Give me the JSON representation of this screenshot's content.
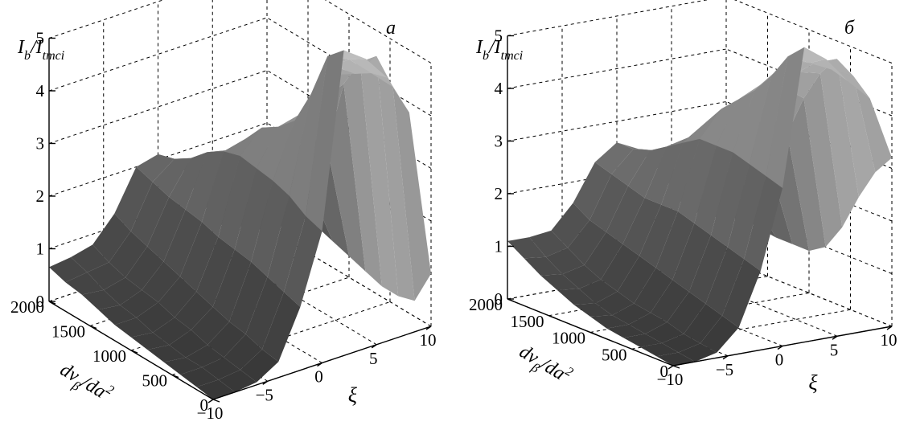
{
  "chart_data": [
    {
      "type": "surface",
      "panel_label": "а",
      "zlabel_main": "I",
      "zlabel_sub1": "b",
      "zlabel_slash": "/I",
      "zlabel_sub2": "tmci",
      "xlabel_main": "dν",
      "xlabel_sub": "β",
      "xlabel_tail": "/da",
      "xlabel_sup": "2",
      "ylabel": "ξ",
      "x_ticks": [
        "0",
        "500",
        "1000",
        "1500",
        "2000"
      ],
      "y_ticks": [
        "−10",
        "−5",
        "0",
        "5",
        "10"
      ],
      "z_ticks": [
        "0",
        "1",
        "2",
        "3",
        "4",
        "5"
      ],
      "xlim": [
        0,
        2000
      ],
      "ylim": [
        -10,
        10
      ],
      "zlim": [
        0,
        5
      ],
      "grid": true,
      "x": [
        0,
        200,
        400,
        600,
        800,
        1000,
        1200,
        1400,
        1600,
        1800,
        2000
      ],
      "y": [
        -10,
        -8,
        -6,
        -4,
        -2,
        0,
        2,
        4,
        6,
        8,
        10
      ],
      "z": [
        [
          0.0,
          0.0,
          0.05,
          0.3,
          1.2,
          2.5,
          5.8,
          5.5,
          5.0,
          4.2,
          1.0
        ],
        [
          0.05,
          0.05,
          0.1,
          0.35,
          1.3,
          2.6,
          5.5,
          5.3,
          4.9,
          4.5,
          0.3
        ],
        [
          0.1,
          0.1,
          0.15,
          0.45,
          1.4,
          2.8,
          4.6,
          5.0,
          4.7,
          4.9,
          0.2
        ],
        [
          0.15,
          0.1,
          0.2,
          0.5,
          1.5,
          2.9,
          3.9,
          4.2,
          4.5,
          4.6,
          0.2
        ],
        [
          0.2,
          0.15,
          0.3,
          0.6,
          1.55,
          2.95,
          3.6,
          3.7,
          3.8,
          4.0,
          0.3
        ],
        [
          0.25,
          0.2,
          0.35,
          0.7,
          1.6,
          3.0,
          3.4,
          3.2,
          3.0,
          2.6,
          0.4
        ],
        [
          0.3,
          0.3,
          0.45,
          0.8,
          1.7,
          2.9,
          3.0,
          2.7,
          2.2,
          1.6,
          0.5
        ],
        [
          0.4,
          0.35,
          0.5,
          0.9,
          1.75,
          2.7,
          2.6,
          2.2,
          1.5,
          1.0,
          0.6
        ],
        [
          0.5,
          0.45,
          0.55,
          1.0,
          1.8,
          2.4,
          2.3,
          1.7,
          0.9,
          0.5,
          0.7
        ],
        [
          0.55,
          0.6,
          0.65,
          1.1,
          1.9,
          2.2,
          2.0,
          1.2,
          0.5,
          0.3,
          0.8
        ],
        [
          0.65,
          0.7,
          0.8,
          1.25,
          2.0,
          2.1,
          1.8,
          0.9,
          0.3,
          0.2,
          0.9
        ]
      ]
    },
    {
      "type": "surface",
      "panel_label": "б",
      "zlabel_main": "I",
      "zlabel_sub1": "b",
      "zlabel_slash": "/I",
      "zlabel_sub2": "tmci",
      "xlabel_main": "dν",
      "xlabel_sub": "β",
      "xlabel_tail": "/da",
      "xlabel_sup": "2",
      "ylabel": "ξ",
      "x_ticks": [
        "0",
        "500",
        "1000",
        "1500",
        "2000"
      ],
      "y_ticks": [
        "−10",
        "−5",
        "0",
        "5",
        "10"
      ],
      "z_ticks": [
        "0",
        "1",
        "2",
        "3",
        "4",
        "5"
      ],
      "xlim": [
        0,
        2000
      ],
      "ylim": [
        -10,
        10
      ],
      "zlim": [
        0,
        5
      ],
      "grid": true,
      "x": [
        0,
        200,
        400,
        600,
        800,
        1000,
        1200,
        1400,
        1600,
        1800,
        2000
      ],
      "y": [
        -10,
        -8,
        -6,
        -4,
        -2,
        0,
        2,
        4,
        6,
        8,
        10
      ],
      "z": [
        [
          0.0,
          0.0,
          0.1,
          0.5,
          1.5,
          3.0,
          5.6,
          5.3,
          4.8,
          4.4,
          3.2
        ],
        [
          0.05,
          0.05,
          0.15,
          0.6,
          1.6,
          3.1,
          5.3,
          5.1,
          4.9,
          4.7,
          2.8
        ],
        [
          0.1,
          0.1,
          0.2,
          0.7,
          1.7,
          3.2,
          4.8,
          5.0,
          4.9,
          4.9,
          2.2
        ],
        [
          0.15,
          0.15,
          0.3,
          0.8,
          1.8,
          3.3,
          4.4,
          4.7,
          4.6,
          4.5,
          1.5
        ],
        [
          0.2,
          0.2,
          0.35,
          0.9,
          1.9,
          3.3,
          4.1,
          4.3,
          4.2,
          3.9,
          1.0
        ],
        [
          0.3,
          0.25,
          0.4,
          1.0,
          2.0,
          3.3,
          3.8,
          3.8,
          3.6,
          3.1,
          0.8
        ],
        [
          0.4,
          0.35,
          0.5,
          1.1,
          2.0,
          3.1,
          3.4,
          3.3,
          2.9,
          2.3,
          0.8
        ],
        [
          0.55,
          0.5,
          0.6,
          1.2,
          2.0,
          2.9,
          3.0,
          2.8,
          2.3,
          1.6,
          0.8
        ],
        [
          0.7,
          0.65,
          0.75,
          1.3,
          2.1,
          2.7,
          2.7,
          2.4,
          1.8,
          1.2,
          0.85
        ],
        [
          0.9,
          0.85,
          0.95,
          1.4,
          2.2,
          2.6,
          2.5,
          2.1,
          1.4,
          1.0,
          0.9
        ],
        [
          1.1,
          1.1,
          1.15,
          1.6,
          2.3,
          2.6,
          2.4,
          1.9,
          1.2,
          0.9,
          1.0
        ]
      ]
    }
  ]
}
